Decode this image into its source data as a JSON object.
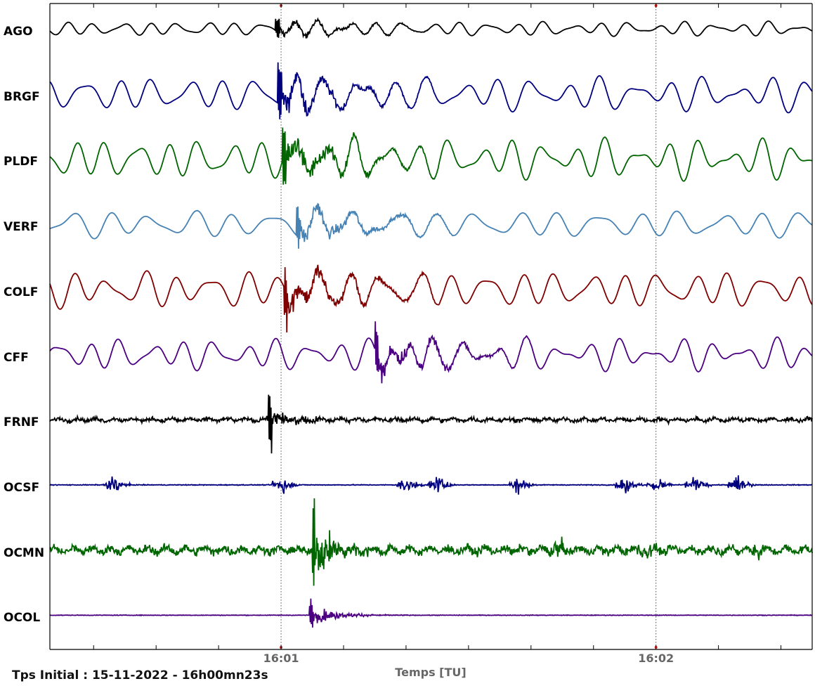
{
  "chart_data": {
    "type": "line",
    "xlabel": "Temps [TU]",
    "x_unit": "seconds since 16:00:23",
    "xlim": [
      0,
      122
    ],
    "xticks": [
      {
        "label": "16:01",
        "t": 37
      },
      {
        "label": "16:02",
        "t": 97
      }
    ],
    "event_markers": [
      37,
      97
    ],
    "series": [
      {
        "name": "AGO",
        "color": "#000000",
        "onset": 36.1,
        "signal": "microseism",
        "amp": 10,
        "period": 4.5
      },
      {
        "name": "BRGF",
        "color": "#00007f",
        "onset": 36.5,
        "signal": "microseism",
        "amp": 24,
        "period": 5.5
      },
      {
        "name": "PLDF",
        "color": "#006400",
        "onset": 37.2,
        "signal": "microseism",
        "amp": 28,
        "period": 5.0
      },
      {
        "name": "VERF",
        "color": "#4682b4",
        "onset": 39.5,
        "signal": "microseism",
        "amp": 20,
        "period": 6.5
      },
      {
        "name": "COLF",
        "color": "#800000",
        "onset": 37.5,
        "signal": "microseism",
        "amp": 26,
        "period": 5.5
      },
      {
        "name": "CFF",
        "color": "#4b0082",
        "onset": 52.0,
        "signal": "microseism",
        "amp": 22,
        "period": 5.0
      },
      {
        "name": "FRNF",
        "color": "#000000",
        "onset": 35.0,
        "signal": "noise",
        "amp": 4
      },
      {
        "name": "OCSF",
        "color": "#00007f",
        "onset": 36.5,
        "signal": "bursts",
        "amp": 2
      },
      {
        "name": "OCMN",
        "color": "#006400",
        "onset": 42.0,
        "signal": "noise",
        "amp": 8
      },
      {
        "name": "OCOL",
        "color": "#4b0082",
        "onset": 41.5,
        "signal": "quiet",
        "amp": 1
      }
    ]
  },
  "footer": "Tps Initial : 15-11-2022 - 16h00mn23s"
}
